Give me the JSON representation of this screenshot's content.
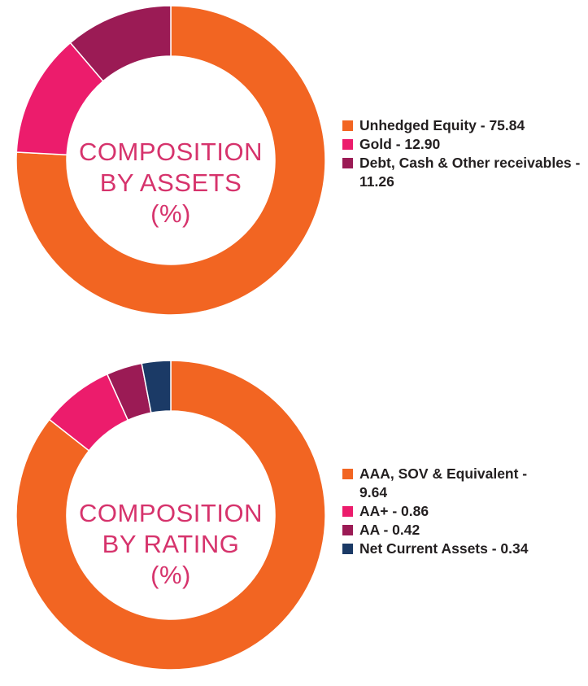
{
  "chart_data": [
    {
      "type": "pie",
      "center_title": [
        "COMPOSITION",
        "BY ASSETS",
        "(%)"
      ],
      "categories": [
        "Unhedged Equity",
        "Gold",
        "Debt, Cash & Other receivables"
      ],
      "values": [
        75.84,
        12.9,
        11.26
      ],
      "legend_labels": [
        "Unhedged Equity - 75.84",
        "Gold - 12.90",
        "Debt, Cash & Other receivables - 11.26"
      ],
      "colors": [
        "#f26522",
        "#ec1c6c",
        "#9b1b55"
      ],
      "legend_position": "right"
    },
    {
      "type": "pie",
      "center_title": [
        "COMPOSITION",
        "BY RATING",
        "(%)"
      ],
      "categories": [
        "AAA, SOV & Equivalent",
        "AA+",
        "AA",
        "Net Current Assets"
      ],
      "values": [
        9.64,
        0.86,
        0.42,
        0.34
      ],
      "legend_labels": [
        "AAA, SOV & Equivalent - 9.64",
        "AA+ - 0.86",
        "AA - 0.42",
        "Net Current Assets - 0.34"
      ],
      "colors": [
        "#f26522",
        "#ec1c6c",
        "#9b1b55",
        "#1b3a66"
      ],
      "legend_position": "right"
    }
  ]
}
